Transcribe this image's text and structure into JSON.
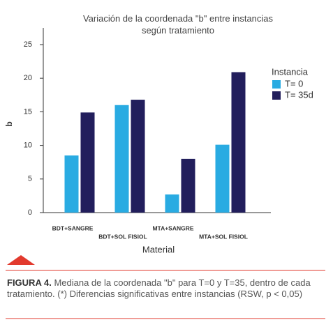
{
  "chart_data": {
    "type": "bar",
    "title": "Variación de la coordenada \"b\" entre instancias según tratamiento",
    "x_label": "Material",
    "y_label": "b",
    "categories": [
      "BDT+SANGRE",
      "BDT+SOL FISIOL",
      "MTA+SANGRE",
      "MTA+SOL FISIOL"
    ],
    "series": [
      {
        "name": "T= 0",
        "color": "#29abe2",
        "values": [
          8.5,
          16,
          2.7,
          10.1
        ]
      },
      {
        "name": "T= 35d",
        "color": "#221e5c",
        "values": [
          14.9,
          16.8,
          8.0,
          20.9
        ]
      }
    ],
    "legend_title": "Instancia",
    "legend": "right",
    "ylim": [
      0,
      25
    ],
    "yticks": [
      0,
      5,
      10,
      15,
      20,
      25
    ],
    "grid": false
  },
  "caption": {
    "label": "FIGURA 4.",
    "text": "Mediana de la coordenada \"b\" para T=0 y T=35, dentro de cada tratamiento. (*) Diferencias significativas entre instancias (RSW, p < 0,05)"
  }
}
